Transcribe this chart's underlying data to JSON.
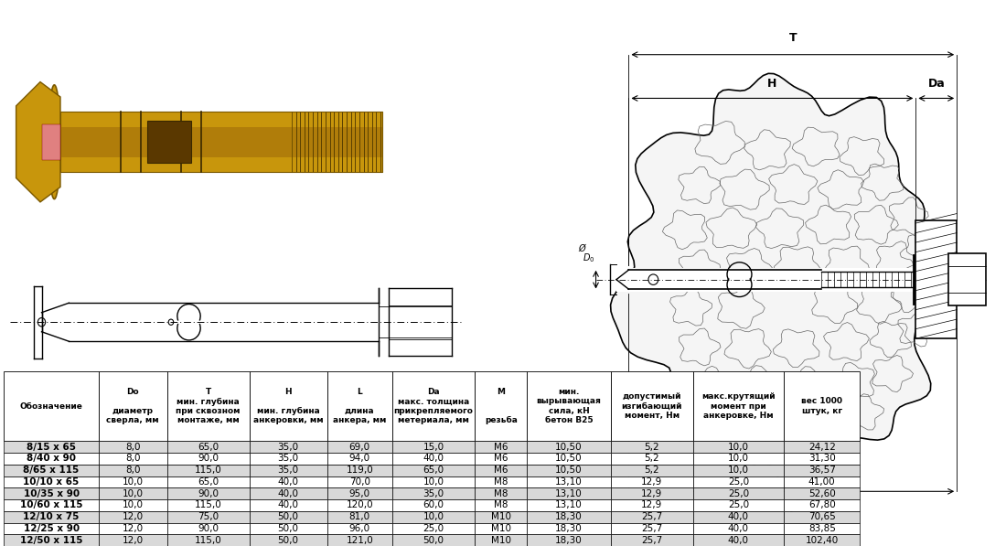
{
  "col_headers": [
    "Обозначение",
    "Do\n\nдиаметр\nсверла, мм",
    "T\nмин. глубина\nпри сквозном\nмонтаже, мм",
    "H\n\nмин. глубина\nанкеровки, мм",
    "L\n\nдлина\nанкера, мм",
    "Da\nмакс. толщина\nприкрепляемого\nметериала, мм",
    "M\n\n\nрезьба",
    "мин.\nвырывающая\nсила, кН\nбетон В25",
    "допустимый\nизгибающий\nмомент, Нм",
    "макс.крутящий\nмомент при\nанкеровке, Нм",
    "вес 1000\nштук, кг"
  ],
  "rows": [
    [
      "8/15 х 65",
      "8,0",
      "65,0",
      "35,0",
      "69,0",
      "15,0",
      "M6",
      "10,50",
      "5,2",
      "10,0",
      "24,12"
    ],
    [
      "8/40 х 90",
      "8,0",
      "90,0",
      "35,0",
      "94,0",
      "40,0",
      "M6",
      "10,50",
      "5,2",
      "10,0",
      "31,30"
    ],
    [
      "8/65 х 115",
      "8,0",
      "115,0",
      "35,0",
      "119,0",
      "65,0",
      "M6",
      "10,50",
      "5,2",
      "10,0",
      "36,57"
    ],
    [
      "10/10 х 65",
      "10,0",
      "65,0",
      "40,0",
      "70,0",
      "10,0",
      "M8",
      "13,10",
      "12,9",
      "25,0",
      "41,00"
    ],
    [
      "10/35 х 90",
      "10,0",
      "90,0",
      "40,0",
      "95,0",
      "35,0",
      "M8",
      "13,10",
      "12,9",
      "25,0",
      "52,60"
    ],
    [
      "10/60 х 115",
      "10,0",
      "115,0",
      "40,0",
      "120,0",
      "60,0",
      "M8",
      "13,10",
      "12,9",
      "25,0",
      "67,80"
    ],
    [
      "12/10 х 75",
      "12,0",
      "75,0",
      "50,0",
      "81,0",
      "10,0",
      "M10",
      "18,30",
      "25,7",
      "40,0",
      "70,65"
    ],
    [
      "12/25 х 90",
      "12,0",
      "90,0",
      "50,0",
      "96,0",
      "25,0",
      "M10",
      "18,30",
      "25,7",
      "40,0",
      "83,85"
    ],
    [
      "12/50 х 115",
      "12,0",
      "115,0",
      "50,0",
      "121,0",
      "50,0",
      "M10",
      "18,30",
      "25,7",
      "40,0",
      "102,40"
    ]
  ],
  "row_colors_odd": "#d9d9d9",
  "row_colors_even": "#ffffff",
  "font_size_header": 6.5,
  "font_size_data": 7.5
}
